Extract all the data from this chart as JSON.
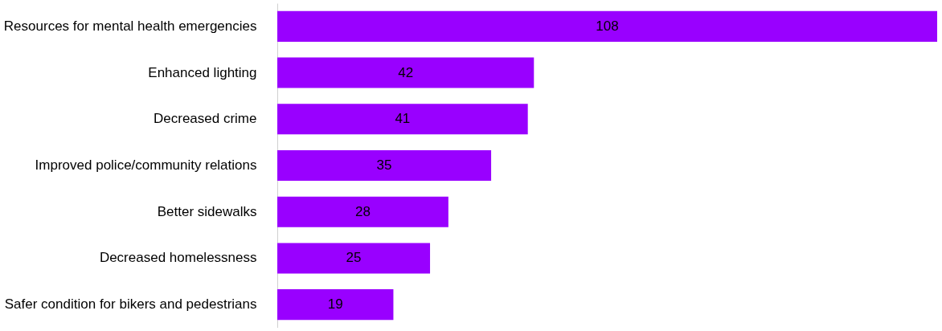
{
  "chart_data": {
    "type": "bar",
    "orientation": "horizontal",
    "categories": [
      "Resources for mental health emergencies",
      "Enhanced lighting",
      "Decreased crime",
      "Improved police/community relations",
      "Better sidewalks",
      "Decreased homelessness",
      "Safer condition for bikers and pedestrians"
    ],
    "values": [
      108,
      42,
      41,
      35,
      28,
      25,
      19
    ],
    "color": "#9900ff",
    "data_labels": true
  }
}
